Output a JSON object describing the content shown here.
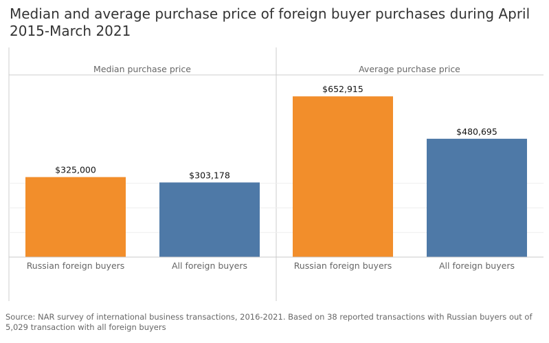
{
  "title": "Median and average purchase price of foreign buyer purchases during April 2015-March 2021",
  "source_note": "Source: NAR survey of international business transactions, 2016-2021. Based on 38 reported transactions with Russian buyers out of 5,029 transaction with all foreign buyers",
  "chart_data": {
    "type": "bar",
    "categories": [
      "Russian foreign buyers",
      "All foreign buyers"
    ],
    "panels": [
      {
        "header": "Median purchase price",
        "values": [
          325000,
          303178
        ],
        "labels": [
          "$325,000",
          "$303,178"
        ]
      },
      {
        "header": "Average purchase price",
        "values": [
          652915,
          480695
        ],
        "labels": [
          "$652,915",
          "$480,695"
        ]
      }
    ],
    "colors": {
      "Russian foreign buyers": "#f28e2b",
      "All foreign buyers": "#4e79a7"
    },
    "ylim": [
      0,
      740000
    ],
    "grid": true,
    "axis_text_color": "#666666"
  }
}
